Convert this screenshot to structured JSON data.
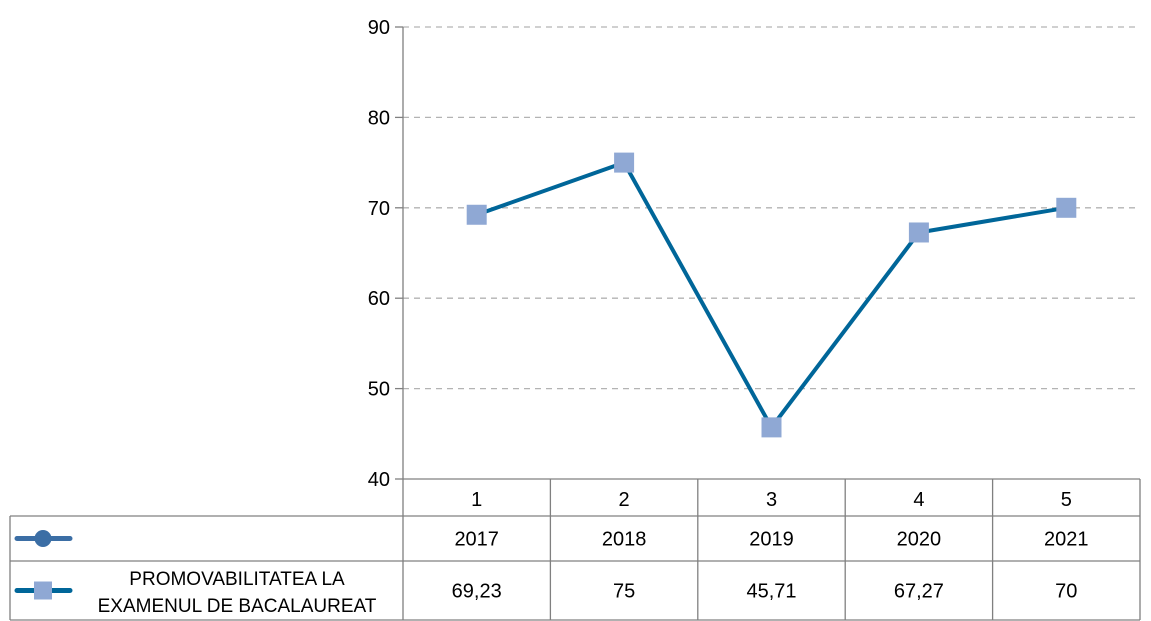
{
  "chart_data": {
    "type": "line",
    "title": "",
    "xlabel": "",
    "ylabel": "",
    "ylim": [
      40,
      90
    ],
    "y_ticks": [
      "90",
      "80",
      "70",
      "60",
      "50",
      "40"
    ],
    "grid": true,
    "categories": [
      "1",
      "2",
      "3",
      "4",
      "5"
    ],
    "table_rows": [
      {
        "marker": "circle",
        "color": "#3b6ea5",
        "label": "",
        "values": [
          "2017",
          "2018",
          "2019",
          "2020",
          "2021"
        ]
      },
      {
        "marker": "square",
        "color": "#006699",
        "marker_color": "#8fa8d4",
        "label_line1": "PROMOVABILITATEA LA",
        "label_line2": "EXAMENUL DE BACALAUREAT",
        "values": [
          "69,23",
          "75",
          "45,71",
          "67,27",
          "70"
        ]
      }
    ],
    "series": [
      {
        "name": "PROMOVABILITATEA LA EXAMENUL DE BACALAUREAT",
        "values": [
          69.23,
          75,
          45.71,
          67.27,
          70
        ]
      }
    ]
  }
}
